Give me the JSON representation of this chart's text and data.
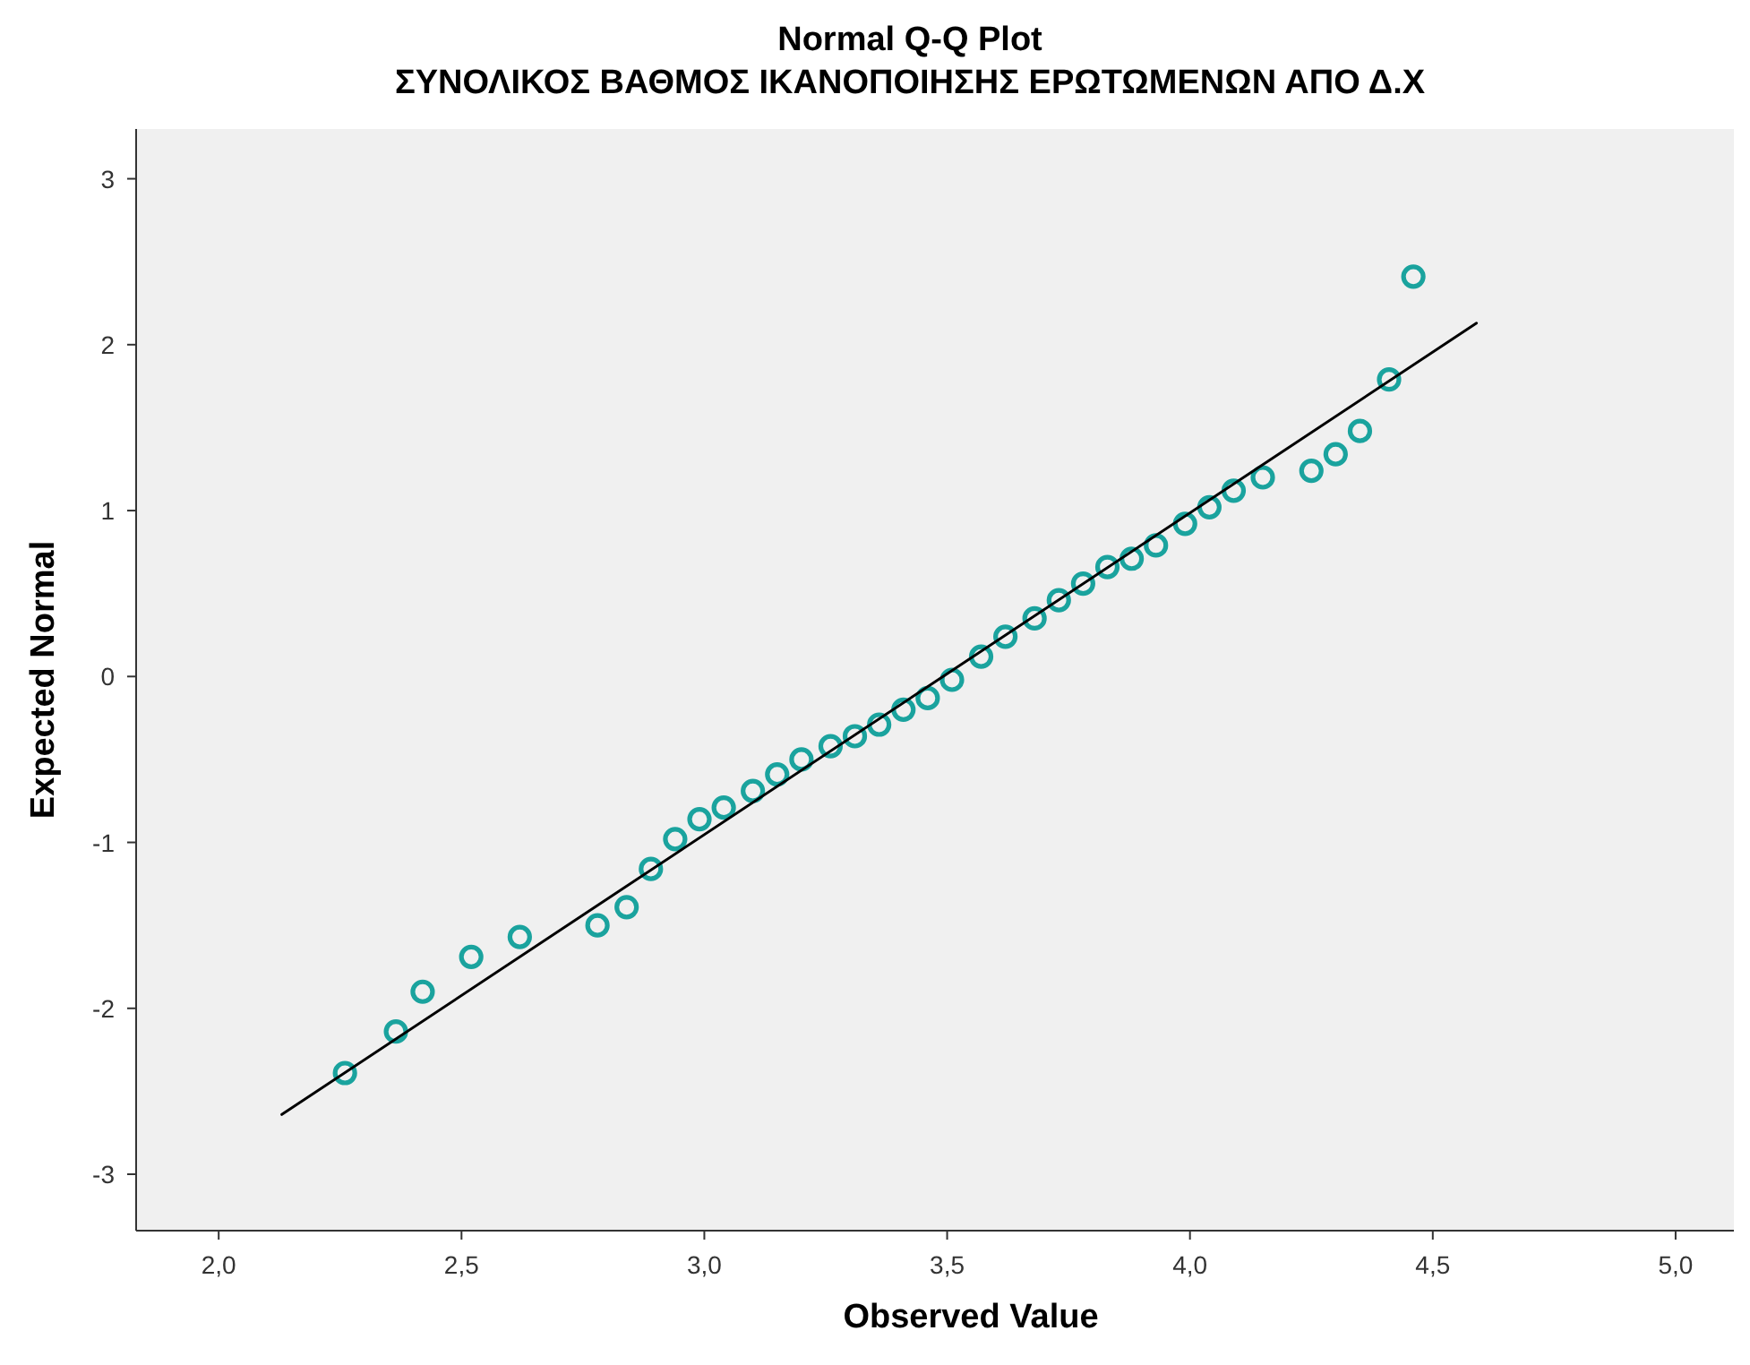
{
  "chart_data": {
    "type": "scatter",
    "title": "Normal Q-Q Plot",
    "subtitle": "ΣΥΝΟΛΙΚΟΣ ΒΑΘΜΟΣ ΙΚΑΝΟΠΟΙΗΣΗΣ ΕΡΩΤΩΜΕΝΩΝ ΑΠΟ Δ.Χ",
    "xlabel": "Observed Value",
    "ylabel": "Expected Normal",
    "xlim": [
      1.83,
      5.12
    ],
    "ylim": [
      -3.34,
      3.3
    ],
    "xticks": [
      {
        "value": 2,
        "label": "2,0"
      },
      {
        "value": 2.5,
        "label": "2,5"
      },
      {
        "value": 3,
        "label": "3,0"
      },
      {
        "value": 3.5,
        "label": "3,5"
      },
      {
        "value": 4,
        "label": "4,0"
      },
      {
        "value": 4.5,
        "label": "4,5"
      },
      {
        "value": 5,
        "label": "5,0"
      }
    ],
    "yticks": [
      -3,
      -2,
      -1,
      0,
      1,
      2,
      3
    ],
    "grid": false,
    "marker": "circle",
    "series": [
      {
        "color": "#1aa39e",
        "x": [
          2.26,
          2.365,
          2.42,
          2.52,
          2.62,
          2.78,
          2.84,
          2.89,
          2.94,
          2.99,
          3.04,
          3.1,
          3.15,
          3.2,
          3.26,
          3.31,
          3.36,
          3.41,
          3.46,
          3.51,
          3.57,
          3.62,
          3.68,
          3.73,
          3.78,
          3.83,
          3.88,
          3.93,
          3.99,
          4.04,
          4.09,
          4.15,
          4.25,
          4.3,
          4.35,
          4.41,
          4.46
        ],
        "values": [
          -2.39,
          -2.14,
          -1.9,
          -1.69,
          -1.57,
          -1.5,
          -1.39,
          -1.16,
          -0.98,
          -0.86,
          -0.79,
          -0.69,
          -0.59,
          -0.5,
          -0.42,
          -0.36,
          -0.29,
          -0.2,
          -0.13,
          -0.02,
          0.12,
          0.24,
          0.35,
          0.46,
          0.56,
          0.66,
          0.71,
          0.79,
          0.92,
          1.02,
          1.12,
          1.2,
          1.24,
          1.34,
          1.48,
          1.79,
          2.41
        ]
      },
      {
        "type": "line",
        "color": "#000000",
        "marker": "none",
        "x": [
          2.13,
          4.59
        ],
        "values": [
          -2.64,
          2.13
        ]
      }
    ]
  }
}
